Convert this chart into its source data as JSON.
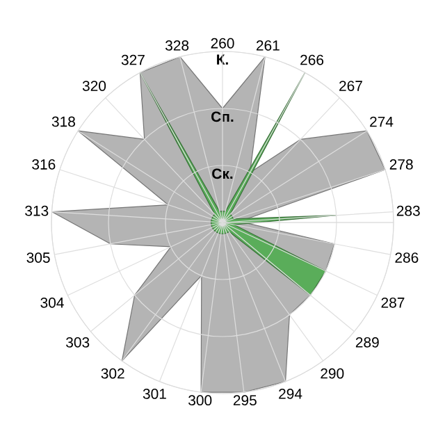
{
  "chart_data": {
    "type": "radar",
    "categories": [
      "260",
      "261",
      "266",
      "267",
      "274",
      "278",
      "283",
      "286",
      "287",
      "289",
      "290",
      "294",
      "295",
      "300",
      "301",
      "302",
      "303",
      "304",
      "305",
      "313",
      "316",
      "318",
      "320",
      "327",
      "328"
    ],
    "ylim": [
      0,
      3
    ],
    "yticks": [
      {
        "value": 1,
        "label": "Ск."
      },
      {
        "value": 2,
        "label": "Сп."
      },
      {
        "value": 3,
        "label": "К."
      }
    ],
    "grid": true,
    "series": [
      {
        "color": "#b4b4b4",
        "values": [
          2,
          3,
          1,
          2,
          3,
          3,
          0.3,
          2,
          2,
          2,
          2,
          3,
          3,
          3,
          1,
          3,
          2,
          1,
          2,
          3,
          1,
          3,
          2,
          3,
          3
        ]
      },
      {
        "color": "#5aad5a",
        "values": [
          0.2,
          0.2,
          3,
          0.2,
          0.2,
          0.2,
          2,
          0.2,
          2,
          2,
          0.2,
          0.2,
          0.2,
          0.2,
          0.2,
          0.2,
          0.2,
          0.2,
          0.2,
          0.2,
          0.2,
          0.2,
          0.2,
          3,
          0.2
        ]
      }
    ]
  }
}
